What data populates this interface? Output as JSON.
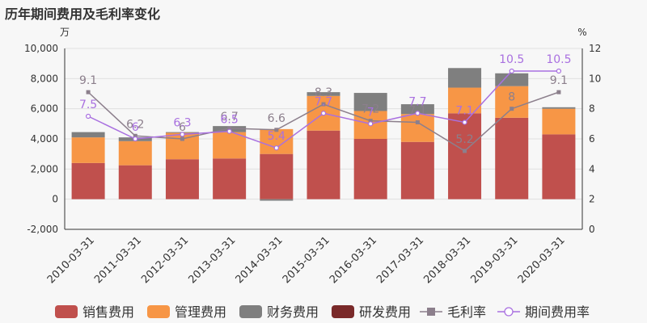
{
  "title": "历年期间费用及毛利率变化",
  "chart_data": {
    "type": "bar",
    "categories": [
      "2010-03-31",
      "2011-03-31",
      "2012-03-31",
      "2013-03-31",
      "2014-03-31",
      "2015-03-31",
      "2016-03-31",
      "2017-03-31",
      "2018-03-31",
      "2019-03-31",
      "2020-03-31"
    ],
    "left_axis": {
      "unit": "万",
      "ylim": [
        -2000,
        10000
      ],
      "ticks": [
        "-2,000",
        "0",
        "2,000",
        "4,000",
        "6,000",
        "8,000",
        "10,000"
      ],
      "tick_values": [
        -2000,
        0,
        2000,
        4000,
        6000,
        8000,
        10000
      ]
    },
    "right_axis": {
      "unit": "%",
      "ylim": [
        0,
        12
      ],
      "ticks": [
        "0",
        "2",
        "4",
        "6",
        "8",
        "10",
        "12"
      ],
      "tick_values": [
        0,
        2,
        4,
        6,
        8,
        10,
        12
      ]
    },
    "bar_series": [
      {
        "name": "销售费用",
        "color": "#c0504d",
        "values": [
          2400,
          2250,
          2650,
          2700,
          3000,
          4550,
          4000,
          3800,
          5700,
          5400,
          4300
        ]
      },
      {
        "name": "管理费用",
        "color": "#f79646",
        "values": [
          1700,
          1600,
          1750,
          1750,
          1650,
          2300,
          1850,
          1850,
          1700,
          2100,
          1700
        ]
      },
      {
        "name": "财务费用",
        "color": "#7f7f7f",
        "values": [
          350,
          250,
          50,
          400,
          -100,
          250,
          1200,
          650,
          1300,
          850,
          100
        ]
      },
      {
        "name": "研发费用",
        "color": "#7a2a2a",
        "values": [
          0,
          0,
          0,
          0,
          0,
          0,
          0,
          0,
          0,
          0,
          0
        ]
      }
    ],
    "line_series": [
      {
        "name": "毛利率",
        "color": "#8c7f8c",
        "marker": "square",
        "values": [
          9.1,
          6.2,
          6,
          6.7,
          6.6,
          8.3,
          7.2,
          7.1,
          5.2,
          8,
          9.1
        ],
        "labels": [
          "9.1",
          "6.2",
          "6",
          "6.7",
          "6.6",
          "8.3",
          "7.2",
          "7.1",
          "5.2",
          "8",
          "9.1"
        ]
      },
      {
        "name": "期间费用率",
        "color": "#a970e0",
        "marker": "circle",
        "values": [
          7.5,
          6,
          6.3,
          6.5,
          5.4,
          7.7,
          7,
          7.7,
          7.1,
          10.5,
          10.5
        ],
        "labels": [
          "7.5",
          "6",
          "6.3",
          "6.5",
          "5.4",
          "7.7",
          "7",
          "7.7",
          "7.1",
          "10.5",
          "10.5"
        ]
      }
    ],
    "grid": true,
    "legend_position": "bottom"
  }
}
